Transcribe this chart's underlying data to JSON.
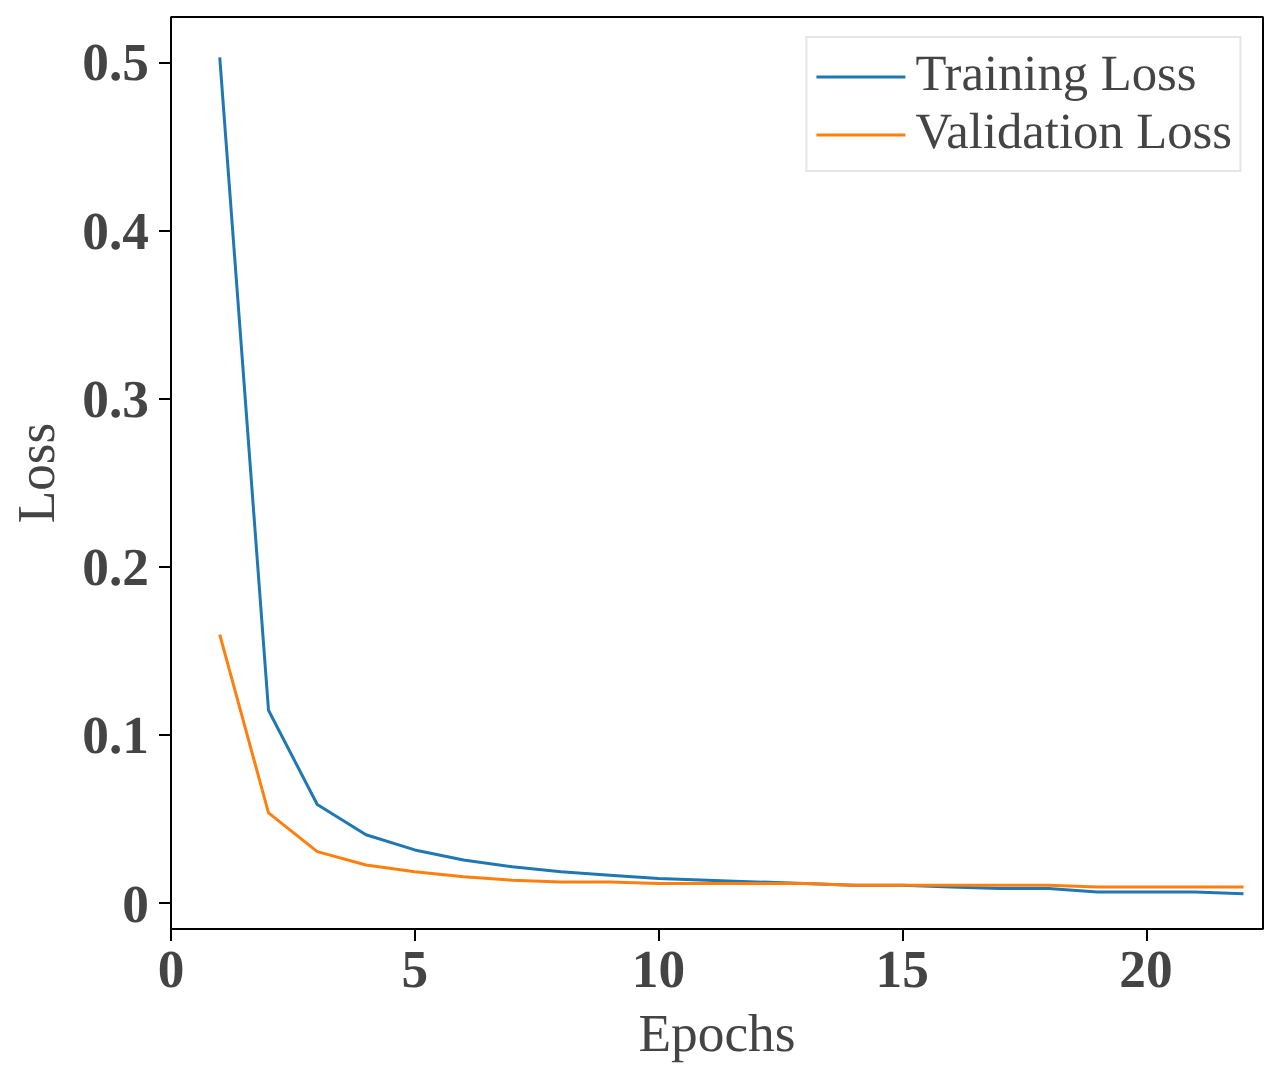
{
  "chart_data": {
    "type": "line",
    "xlabel": "Epochs",
    "ylabel": "Loss",
    "x": [
      1,
      2,
      3,
      4,
      5,
      6,
      7,
      8,
      9,
      10,
      11,
      12,
      13,
      14,
      15,
      16,
      17,
      18,
      19,
      20,
      21,
      22
    ],
    "series": [
      {
        "name": "Training Loss",
        "color": "#1f77b4",
        "values": [
          0.503,
          0.115,
          0.059,
          0.041,
          0.032,
          0.026,
          0.022,
          0.019,
          0.017,
          0.015,
          0.014,
          0.013,
          0.012,
          0.011,
          0.011,
          0.01,
          0.009,
          0.009,
          0.007,
          0.007,
          0.007,
          0.006
        ]
      },
      {
        "name": "Validation Loss",
        "color": "#ff7f0e",
        "values": [
          0.16,
          0.054,
          0.031,
          0.023,
          0.019,
          0.016,
          0.014,
          0.013,
          0.013,
          0.012,
          0.012,
          0.012,
          0.012,
          0.011,
          0.011,
          0.011,
          0.011,
          0.011,
          0.01,
          0.01,
          0.01,
          0.01
        ]
      }
    ],
    "xlim": [
      0,
      22.4
    ],
    "ylim": [
      -0.015,
      0.527
    ],
    "xticks": [
      0,
      5,
      10,
      15,
      20
    ],
    "yticks": [
      0,
      0.1,
      0.2,
      0.3,
      0.4,
      0.5
    ],
    "grid": false,
    "legend": "top right",
    "marker": "none",
    "line_style": "solid"
  }
}
